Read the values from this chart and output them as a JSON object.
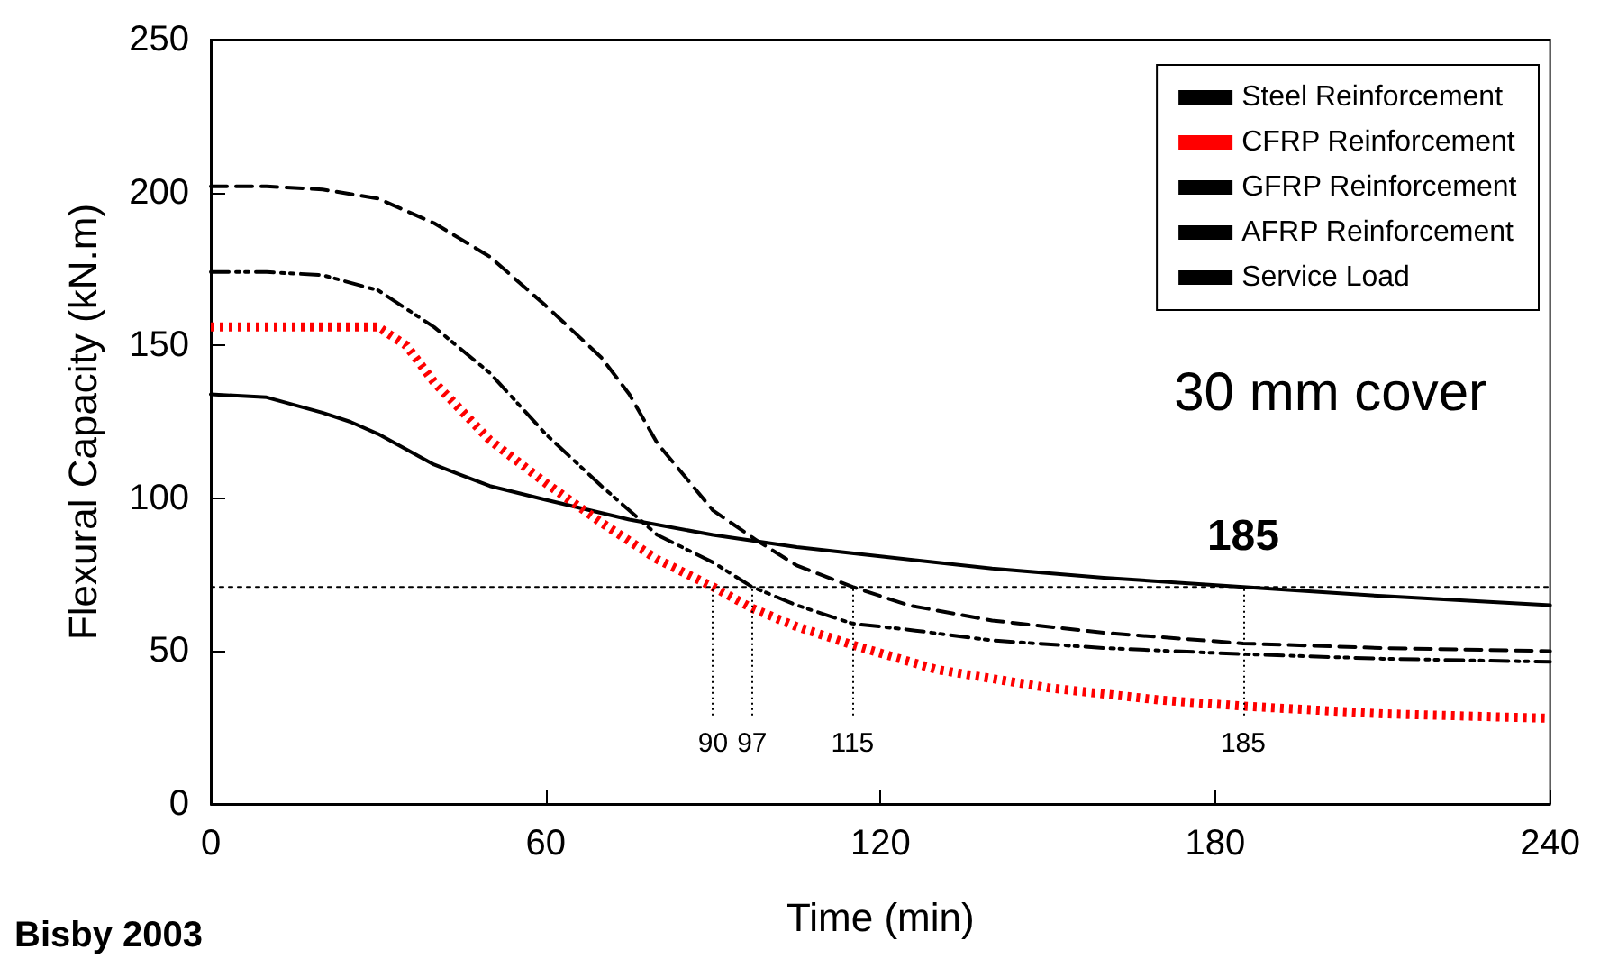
{
  "chart_data": {
    "type": "line",
    "xlabel": "Time (min)",
    "ylabel": "Flexural Capacity (kN.m)",
    "xlim": [
      0,
      240
    ],
    "xticks": [
      0,
      60,
      120,
      180,
      240
    ],
    "ylim": [
      0,
      250
    ],
    "yticks": [
      0,
      50,
      100,
      150,
      200,
      250
    ],
    "grid": false,
    "legend": "top right",
    "marker": "none",
    "series": [
      {
        "name": "Steel Reinforcement",
        "color": "#000000",
        "line_style": "solid",
        "x": [
          0,
          10,
          20,
          25,
          30,
          40,
          50,
          60,
          75,
          90,
          105,
          120,
          140,
          160,
          185,
          210,
          240
        ],
        "values": [
          134,
          133,
          128,
          125,
          121,
          111,
          104,
          99.5,
          93,
          88,
          84,
          81,
          77,
          74,
          71,
          68,
          65
        ]
      },
      {
        "name": "CFRP Reinforcement",
        "color": "#ff0000",
        "line_style": "dotted",
        "x": [
          0,
          10,
          20,
          30,
          35,
          40,
          50,
          60,
          70,
          80,
          90,
          97,
          105,
          115,
          130,
          150,
          170,
          185,
          210,
          240
        ],
        "values": [
          156,
          156,
          156,
          156,
          150,
          138,
          119,
          105,
          92,
          80,
          71,
          64,
          58,
          52,
          44,
          38,
          34,
          32,
          29.5,
          28
        ]
      },
      {
        "name": "GFRP Reinforcement",
        "color": "#000000",
        "line_style": "dashed",
        "x": [
          0,
          10,
          20,
          30,
          40,
          50,
          60,
          70,
          75,
          80,
          90,
          98,
          105,
          115,
          125,
          140,
          160,
          185,
          210,
          240
        ],
        "values": [
          202,
          202,
          201,
          198,
          190,
          179,
          163,
          146,
          134,
          118,
          96,
          86,
          78,
          71,
          65,
          60,
          56,
          52.5,
          51,
          50
        ]
      },
      {
        "name": "AFRP Reinforcement",
        "color": "#000000",
        "line_style": "dashdot",
        "x": [
          0,
          10,
          20,
          30,
          40,
          50,
          60,
          70,
          80,
          90,
          97,
          105,
          115,
          125,
          140,
          160,
          185,
          210,
          240
        ],
        "values": [
          174,
          174,
          173,
          168,
          156,
          141,
          121,
          104,
          88,
          79,
          71,
          65,
          59,
          57,
          53.5,
          51,
          49,
          47.5,
          46.5
        ]
      },
      {
        "name": "Service Load",
        "color": "#000000",
        "line_style": "dotted",
        "x": [
          0,
          240
        ],
        "values": [
          71,
          71
        ]
      }
    ],
    "ref_lines": [
      {
        "axis": "x",
        "value": 90,
        "label": "90"
      },
      {
        "axis": "x",
        "value": 97,
        "label": "97"
      },
      {
        "axis": "x",
        "value": 115,
        "label": "115"
      },
      {
        "axis": "x",
        "value": 185,
        "label": "185"
      }
    ],
    "annotations": [
      "30 mm cover",
      {
        "text": "185",
        "x": 185,
        "y": 71
      },
      "Bisby 2003"
    ]
  }
}
